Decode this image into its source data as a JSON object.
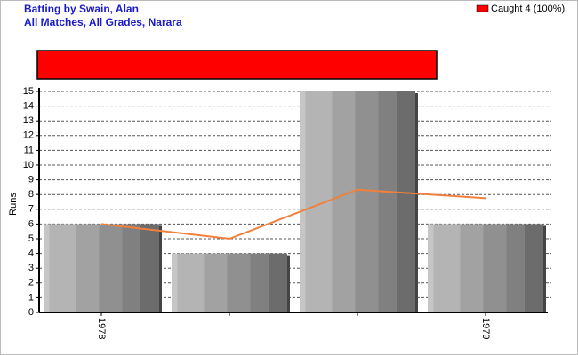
{
  "chart_data": [
    {
      "type": "bar",
      "title": "Batting by Swain, Alan",
      "subtitle": "All Matches, All Grades, Narara",
      "ylabel": "Runs",
      "categories": [
        "1978",
        null,
        null,
        "1979"
      ],
      "values": [
        6,
        4,
        15,
        6
      ],
      "average_values": [
        6,
        5,
        8.33,
        7.75
      ],
      "line_color": "#f0803c",
      "ylim": [
        0,
        15
      ],
      "yticks": [
        0,
        1,
        2,
        3,
        4,
        5,
        6,
        7,
        8,
        9,
        10,
        11,
        12,
        13,
        14,
        15
      ],
      "grid": true
    },
    {
      "type": "stacked-bar",
      "series": [
        {
          "name": "Caught 4 (100%)",
          "color": "#ff0000",
          "values": [
            100
          ]
        }
      ],
      "xlim": [
        0,
        100
      ]
    }
  ]
}
